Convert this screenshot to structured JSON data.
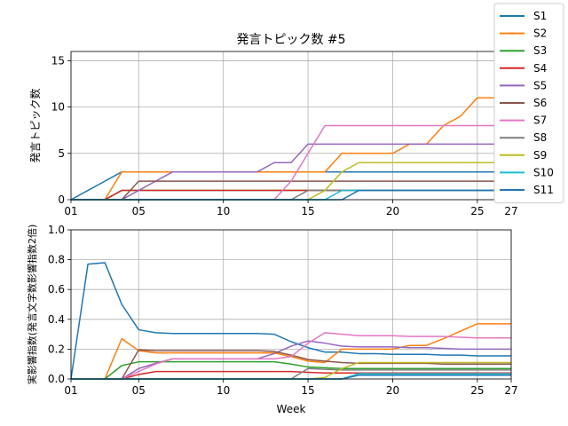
{
  "title": "発言トピック数 #5",
  "xlabel": "Week",
  "x_tick_labels": [
    "01",
    "05",
    "10",
    "15",
    "20",
    "25",
    "27"
  ],
  "x_tick_values": [
    1,
    5,
    10,
    15,
    20,
    25,
    27
  ],
  "chart_data": [
    {
      "type": "line",
      "title": "発言トピック数 #5",
      "xlabel": "",
      "ylabel": "発言トピック数",
      "xlim": [
        1,
        27
      ],
      "ylim": [
        0,
        16
      ],
      "yticks": [
        0,
        5,
        10,
        15
      ],
      "grid": true,
      "x": [
        1,
        2,
        3,
        4,
        5,
        6,
        7,
        8,
        9,
        10,
        11,
        12,
        13,
        14,
        15,
        16,
        17,
        18,
        19,
        20,
        21,
        22,
        23,
        24,
        25,
        26,
        27
      ],
      "series": [
        {
          "name": "S1",
          "color": "#1f77b4",
          "values": [
            0,
            1,
            2,
            3,
            3,
            3,
            3,
            3,
            3,
            3,
            3,
            3,
            3,
            3,
            3,
            3,
            3,
            3,
            3,
            3,
            3,
            3,
            3,
            3,
            3,
            3,
            3
          ]
        },
        {
          "name": "S2",
          "color": "#ff7f0e",
          "values": [
            0,
            0,
            0,
            3,
            3,
            3,
            3,
            3,
            3,
            3,
            3,
            3,
            3,
            3,
            3,
            3,
            5,
            5,
            5,
            5,
            6,
            6,
            8,
            9,
            11,
            11,
            11
          ]
        },
        {
          "name": "S3",
          "color": "#2ca02c",
          "values": [
            0,
            0,
            0,
            1,
            1,
            1,
            1,
            1,
            1,
            1,
            1,
            1,
            1,
            1,
            1,
            1,
            1,
            1,
            1,
            1,
            1,
            1,
            1,
            1,
            1,
            1,
            1
          ]
        },
        {
          "name": "S4",
          "color": "#d62728",
          "values": [
            0,
            0,
            0,
            1,
            1,
            1,
            1,
            1,
            1,
            1,
            1,
            1,
            1,
            1,
            1,
            1,
            1,
            1,
            1,
            1,
            1,
            1,
            1,
            1,
            1,
            1,
            1
          ]
        },
        {
          "name": "S5",
          "color": "#9467bd",
          "values": [
            0,
            0,
            0,
            0,
            1,
            2,
            3,
            3,
            3,
            3,
            3,
            3,
            4,
            4,
            6,
            6,
            6,
            6,
            6,
            6,
            6,
            6,
            6,
            6,
            6,
            6,
            6
          ]
        },
        {
          "name": "S6",
          "color": "#8c564b",
          "values": [
            0,
            0,
            0,
            0,
            2,
            2,
            2,
            2,
            2,
            2,
            2,
            2,
            2,
            2,
            2,
            2,
            2,
            2,
            2,
            2,
            2,
            2,
            2,
            2,
            2,
            2,
            2
          ]
        },
        {
          "name": "S7",
          "color": "#e377c2",
          "values": [
            0,
            0,
            0,
            0,
            0,
            0,
            0,
            0,
            0,
            0,
            0,
            0,
            0,
            2,
            5,
            8,
            8,
            8,
            8,
            8,
            8,
            8,
            8,
            8,
            8,
            8,
            8
          ]
        },
        {
          "name": "S8",
          "color": "#7f7f7f",
          "values": [
            0,
            0,
            0,
            0,
            0,
            0,
            0,
            0,
            0,
            0,
            0,
            0,
            0,
            0,
            1,
            1,
            1,
            1,
            1,
            1,
            1,
            1,
            1,
            1,
            1,
            1,
            1
          ]
        },
        {
          "name": "S9",
          "color": "#bcbd22",
          "values": [
            0,
            0,
            0,
            0,
            0,
            0,
            0,
            0,
            0,
            0,
            0,
            0,
            0,
            0,
            0,
            1,
            3,
            4,
            4,
            4,
            4,
            4,
            4,
            4,
            4,
            4,
            4
          ]
        },
        {
          "name": "S10",
          "color": "#17becf",
          "values": [
            0,
            0,
            0,
            0,
            0,
            0,
            0,
            0,
            0,
            0,
            0,
            0,
            0,
            0,
            0,
            0,
            1,
            1,
            1,
            1,
            1,
            1,
            1,
            1,
            1,
            1,
            1
          ]
        },
        {
          "name": "S11",
          "color": "#1f77b4",
          "values": [
            0,
            0,
            0,
            0,
            0,
            0,
            0,
            0,
            0,
            0,
            0,
            0,
            0,
            0,
            0,
            0,
            0,
            1,
            1,
            1,
            1,
            1,
            1,
            1,
            1,
            1,
            1
          ]
        }
      ]
    },
    {
      "type": "line",
      "title": "",
      "xlabel": "Week",
      "ylabel": "実影響指数(発言文字数影響指数2倍)",
      "xlim": [
        1,
        27
      ],
      "ylim": [
        0,
        1.0
      ],
      "yticks": [
        0.0,
        0.2,
        0.4,
        0.6,
        0.8,
        1.0
      ],
      "grid": true,
      "x": [
        1,
        2,
        3,
        4,
        5,
        6,
        7,
        8,
        9,
        10,
        11,
        12,
        13,
        14,
        15,
        16,
        17,
        18,
        19,
        20,
        21,
        22,
        23,
        24,
        25,
        26,
        27
      ],
      "series": [
        {
          "name": "S1",
          "color": "#1f77b4",
          "values": [
            0,
            0.77,
            0.78,
            0.5,
            0.33,
            0.31,
            0.305,
            0.305,
            0.305,
            0.305,
            0.305,
            0.305,
            0.3,
            0.25,
            0.21,
            0.18,
            0.18,
            0.17,
            0.17,
            0.165,
            0.165,
            0.165,
            0.16,
            0.16,
            0.155,
            0.155,
            0.155
          ]
        },
        {
          "name": "S2",
          "color": "#ff7f0e",
          "values": [
            0,
            0,
            0,
            0.27,
            0.19,
            0.175,
            0.175,
            0.175,
            0.175,
            0.175,
            0.175,
            0.175,
            0.175,
            0.15,
            0.12,
            0.11,
            0.2,
            0.2,
            0.2,
            0.2,
            0.225,
            0.225,
            0.27,
            0.32,
            0.37,
            0.37,
            0.37
          ]
        },
        {
          "name": "S3",
          "color": "#2ca02c",
          "values": [
            0,
            0,
            0,
            0.09,
            0.115,
            0.115,
            0.115,
            0.115,
            0.115,
            0.115,
            0.115,
            0.115,
            0.115,
            0.1,
            0.08,
            0.075,
            0.07,
            0.07,
            0.07,
            0.07,
            0.07,
            0.07,
            0.07,
            0.07,
            0.07,
            0.07,
            0.07
          ]
        },
        {
          "name": "S4",
          "color": "#d62728",
          "values": [
            0,
            0,
            0,
            0,
            0.03,
            0.05,
            0.05,
            0.05,
            0.05,
            0.05,
            0.05,
            0.05,
            0.05,
            0.05,
            0.045,
            0.04,
            0.04,
            0.04,
            0.04,
            0.04,
            0.04,
            0.04,
            0.04,
            0.04,
            0.04,
            0.04,
            0.04
          ]
        },
        {
          "name": "S5",
          "color": "#9467bd",
          "values": [
            0,
            0,
            0,
            0,
            0.07,
            0.105,
            0.135,
            0.135,
            0.135,
            0.135,
            0.135,
            0.135,
            0.17,
            0.22,
            0.255,
            0.24,
            0.22,
            0.215,
            0.215,
            0.215,
            0.21,
            0.21,
            0.205,
            0.2,
            0.2,
            0.2,
            0.2
          ]
        },
        {
          "name": "S6",
          "color": "#8c564b",
          "values": [
            0,
            0,
            0,
            0,
            0.195,
            0.19,
            0.19,
            0.19,
            0.19,
            0.19,
            0.19,
            0.19,
            0.185,
            0.16,
            0.13,
            0.12,
            0.11,
            0.105,
            0.105,
            0.105,
            0.105,
            0.105,
            0.1,
            0.1,
            0.1,
            0.1,
            0.1
          ]
        },
        {
          "name": "S7",
          "color": "#e377c2",
          "values": [
            0,
            0,
            0,
            0,
            0.05,
            0.1,
            0.135,
            0.135,
            0.135,
            0.135,
            0.135,
            0.135,
            0.135,
            0.15,
            0.24,
            0.31,
            0.3,
            0.29,
            0.29,
            0.29,
            0.285,
            0.285,
            0.285,
            0.28,
            0.275,
            0.275,
            0.275
          ]
        },
        {
          "name": "S8",
          "color": "#7f7f7f",
          "values": [
            0,
            0,
            0,
            0,
            0,
            0,
            0,
            0,
            0,
            0,
            0,
            0,
            0,
            0,
            0.07,
            0.065,
            0.06,
            0.06,
            0.06,
            0.06,
            0.06,
            0.06,
            0.06,
            0.06,
            0.06,
            0.06,
            0.06
          ]
        },
        {
          "name": "S9",
          "color": "#bcbd22",
          "values": [
            0,
            0,
            0,
            0,
            0,
            0,
            0,
            0,
            0,
            0,
            0,
            0,
            0,
            0,
            0,
            0.01,
            0.07,
            0.11,
            0.11,
            0.11,
            0.11,
            0.11,
            0.11,
            0.11,
            0.11,
            0.11,
            0.11
          ]
        },
        {
          "name": "S10",
          "color": "#17becf",
          "values": [
            0,
            0,
            0,
            0,
            0,
            0,
            0,
            0,
            0,
            0,
            0,
            0,
            0,
            0,
            0,
            0,
            0,
            0.035,
            0.035,
            0.035,
            0.035,
            0.035,
            0.035,
            0.035,
            0.035,
            0.035,
            0.035
          ]
        },
        {
          "name": "S11",
          "color": "#1f77b4",
          "values": [
            0,
            0,
            0,
            0,
            0,
            0,
            0,
            0,
            0,
            0,
            0,
            0,
            0,
            0,
            0,
            0,
            0,
            0.025,
            0.025,
            0.025,
            0.025,
            0.025,
            0.025,
            0.025,
            0.025,
            0.025,
            0.025
          ]
        }
      ]
    }
  ]
}
